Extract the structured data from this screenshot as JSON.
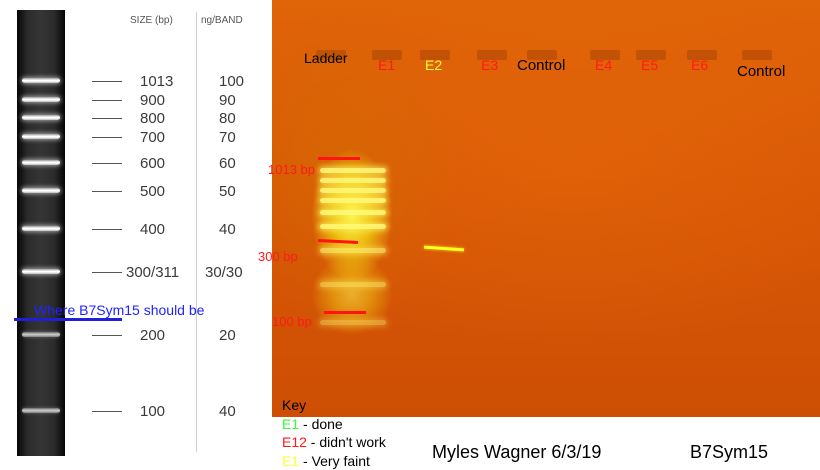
{
  "ladder_reference": {
    "size_header": "SIZE (bp)",
    "ng_header": "ng/BAND",
    "rows": [
      {
        "size": "1013",
        "ng": "100"
      },
      {
        "size": "900",
        "ng": "90"
      },
      {
        "size": "800",
        "ng": "80"
      },
      {
        "size": "700",
        "ng": "70"
      },
      {
        "size": "600",
        "ng": "60"
      },
      {
        "size": "500",
        "ng": "50"
      },
      {
        "size": "400",
        "ng": "40"
      },
      {
        "size": "300/311",
        "ng": "30/30"
      },
      {
        "size": "200",
        "ng": "20"
      },
      {
        "size": "100",
        "ng": "40"
      }
    ]
  },
  "gel": {
    "lanes": [
      {
        "label": "Ladder",
        "color": "#000000"
      },
      {
        "label": "E1",
        "color": "#ff1a1a"
      },
      {
        "label": "E2",
        "color": "#ffff33"
      },
      {
        "label": "E3",
        "color": "#ff1a1a"
      },
      {
        "label": "Control",
        "color": "#000000"
      },
      {
        "label": "E4",
        "color": "#ff1a1a"
      },
      {
        "label": "E5",
        "color": "#ff1a1a"
      },
      {
        "label": "E6",
        "color": "#ff1a1a"
      },
      {
        "label": "Control",
        "color": "#000000"
      }
    ],
    "size_markers": [
      {
        "label": "1013 bp"
      },
      {
        "label": "300 bp"
      },
      {
        "label": "100 bp"
      }
    ]
  },
  "annotation": {
    "expected_position": "Where B7Sym15 should be"
  },
  "key": {
    "title": "Key",
    "items": [
      {
        "code": "E1",
        "text": " - done",
        "color": "#33ff33"
      },
      {
        "code": "E12",
        "text": " - didn't work",
        "color": "#ff1a1a"
      },
      {
        "code": "E1",
        "text": " - Very faint",
        "color": "#ffff33"
      }
    ]
  },
  "footer": {
    "author_date": "Myles Wagner 6/3/19",
    "sample_name": "B7Sym15"
  }
}
